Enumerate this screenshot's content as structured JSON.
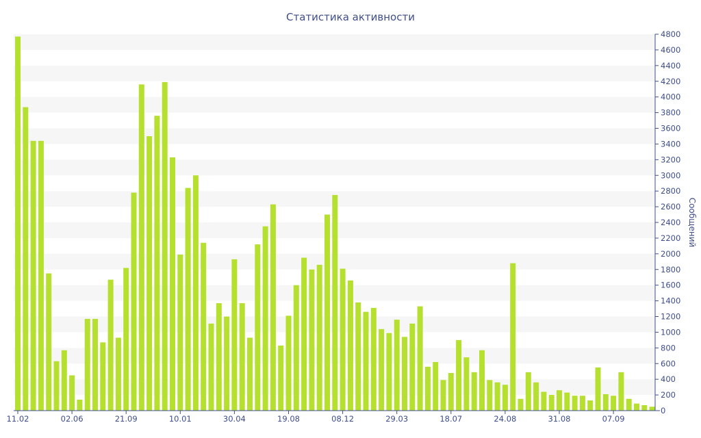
{
  "chart_data": {
    "type": "bar",
    "title": "Статистика активности",
    "ylabel": "Сообщений",
    "ylim": [
      0,
      4800
    ],
    "yticks": [
      0,
      200,
      400,
      600,
      800,
      1000,
      1200,
      1400,
      1600,
      1800,
      2000,
      2200,
      2400,
      2600,
      2800,
      3000,
      3200,
      3400,
      3600,
      3800,
      4000,
      4200,
      4400,
      4600,
      4800
    ],
    "xticks": [
      {
        "index": 0,
        "label": "11.02"
      },
      {
        "index": 7,
        "label": "02.06"
      },
      {
        "index": 14,
        "label": "21.09"
      },
      {
        "index": 21,
        "label": "10.01"
      },
      {
        "index": 28,
        "label": "30.04"
      },
      {
        "index": 35,
        "label": "19.08"
      },
      {
        "index": 42,
        "label": "08.12"
      },
      {
        "index": 49,
        "label": "29.03"
      },
      {
        "index": 56,
        "label": "18.07"
      },
      {
        "index": 63,
        "label": "24.08"
      },
      {
        "index": 70,
        "label": "31.08"
      },
      {
        "index": 77,
        "label": "07.09"
      }
    ],
    "values": [
      4770,
      3870,
      3440,
      3440,
      1750,
      630,
      770,
      450,
      140,
      1170,
      1170,
      870,
      1670,
      930,
      1820,
      2780,
      4160,
      3500,
      3760,
      4190,
      3230,
      1990,
      2840,
      3000,
      2140,
      1110,
      1370,
      1200,
      1930,
      1370,
      930,
      2120,
      2350,
      2630,
      830,
      1210,
      1600,
      1950,
      1800,
      1860,
      2500,
      2750,
      1810,
      1660,
      1380,
      1260,
      1310,
      1040,
      990,
      1160,
      940,
      1110,
      1330,
      560,
      620,
      390,
      480,
      900,
      680,
      490,
      770,
      390,
      360,
      330,
      1880,
      150,
      490,
      360,
      240,
      200,
      260,
      230,
      190,
      190,
      130,
      550,
      210,
      190,
      490,
      150,
      90,
      70,
      50
    ],
    "colors": {
      "bar": "#b6e02f",
      "text": "#3e4d8c",
      "band": "#f6f6f6"
    },
    "grid": "alternating horizontal bands"
  }
}
